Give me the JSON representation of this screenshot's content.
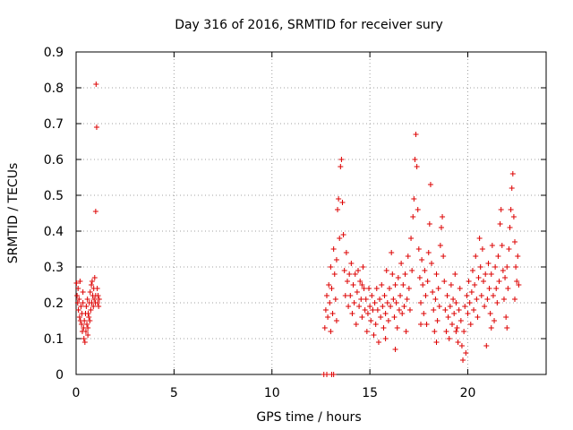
{
  "chart_data": {
    "type": "scatter",
    "title": "Day 316 of 2016, SRMTID for receiver sury",
    "xlabel": "GPS time / hours",
    "ylabel": "SRMTID / TECUs",
    "xlim": [
      0,
      24
    ],
    "ylim": [
      0,
      0.9
    ],
    "xticks": [
      0,
      5,
      10,
      15,
      20
    ],
    "xtick_labels": [
      "0",
      "5",
      "10",
      "15",
      "20"
    ],
    "yticks": [
      0,
      0.1,
      0.2,
      0.3,
      0.4,
      0.5,
      0.6,
      0.7,
      0.8,
      0.9
    ],
    "ytick_labels": [
      "0",
      "0.1",
      "0.2",
      "0.3",
      "0.4",
      "0.5",
      "0.6",
      "0.7",
      "0.8",
      "0.9"
    ],
    "grid": true,
    "marker": "plus",
    "color": "#dd0000",
    "series": [
      {
        "name": "SRMTID",
        "points": [
          [
            0.02,
            0.255
          ],
          [
            0.05,
            0.22
          ],
          [
            0.08,
            0.2
          ],
          [
            0.1,
            0.24
          ],
          [
            0.12,
            0.18
          ],
          [
            0.15,
            0.21
          ],
          [
            0.18,
            0.16
          ],
          [
            0.2,
            0.26
          ],
          [
            0.22,
            0.15
          ],
          [
            0.25,
            0.19
          ],
          [
            0.28,
            0.14
          ],
          [
            0.3,
            0.17
          ],
          [
            0.32,
            0.12
          ],
          [
            0.35,
            0.2
          ],
          [
            0.38,
            0.13
          ],
          [
            0.4,
            0.1
          ],
          [
            0.42,
            0.15
          ],
          [
            0.45,
            0.09
          ],
          [
            0.48,
            0.17
          ],
          [
            0.5,
            0.12
          ],
          [
            0.52,
            0.19
          ],
          [
            0.55,
            0.14
          ],
          [
            0.58,
            0.21
          ],
          [
            0.6,
            0.13
          ],
          [
            0.62,
            0.17
          ],
          [
            0.65,
            0.16
          ],
          [
            0.68,
            0.2
          ],
          [
            0.7,
            0.15
          ],
          [
            0.72,
            0.23
          ],
          [
            0.75,
            0.18
          ],
          [
            0.78,
            0.25
          ],
          [
            0.8,
            0.2
          ],
          [
            0.82,
            0.26
          ],
          [
            0.85,
            0.22
          ],
          [
            0.88,
            0.19
          ],
          [
            0.9,
            0.24
          ],
          [
            0.92,
            0.21
          ],
          [
            0.95,
            0.27
          ],
          [
            0.98,
            0.2
          ],
          [
            1.0,
            0.22
          ],
          [
            1.02,
            0.81
          ],
          [
            1.05,
            0.69
          ],
          [
            1.0,
            0.455
          ],
          [
            1.08,
            0.24
          ],
          [
            1.1,
            0.2
          ],
          [
            1.12,
            0.22
          ],
          [
            1.15,
            0.19
          ],
          [
            1.18,
            0.21
          ],
          [
            0.35,
            0.23
          ],
          [
            0.6,
            0.11
          ],
          [
            12.65,
            0.0
          ],
          [
            12.8,
            0.0
          ],
          [
            13.05,
            0.0
          ],
          [
            13.15,
            0.0
          ],
          [
            12.7,
            0.13
          ],
          [
            12.75,
            0.18
          ],
          [
            12.8,
            0.22
          ],
          [
            12.85,
            0.16
          ],
          [
            12.9,
            0.25
          ],
          [
            12.95,
            0.2
          ],
          [
            13.0,
            0.3
          ],
          [
            13.05,
            0.24
          ],
          [
            13.1,
            0.17
          ],
          [
            13.15,
            0.35
          ],
          [
            13.2,
            0.28
          ],
          [
            13.25,
            0.21
          ],
          [
            13.3,
            0.32
          ],
          [
            13.35,
            0.46
          ],
          [
            13.4,
            0.49
          ],
          [
            13.45,
            0.38
          ],
          [
            13.5,
            0.58
          ],
          [
            13.55,
            0.6
          ],
          [
            13.6,
            0.48
          ],
          [
            13.65,
            0.39
          ],
          [
            13.7,
            0.29
          ],
          [
            13.75,
            0.22
          ],
          [
            13.8,
            0.34
          ],
          [
            13.85,
            0.26
          ],
          [
            13.9,
            0.19
          ],
          [
            13.95,
            0.28
          ],
          [
            14.0,
            0.22
          ],
          [
            14.05,
            0.31
          ],
          [
            14.1,
            0.17
          ],
          [
            14.15,
            0.25
          ],
          [
            14.2,
            0.2
          ],
          [
            14.25,
            0.28
          ],
          [
            14.3,
            0.14
          ],
          [
            14.35,
            0.23
          ],
          [
            14.4,
            0.29
          ],
          [
            14.45,
            0.19
          ],
          [
            14.5,
            0.26
          ],
          [
            14.55,
            0.21
          ],
          [
            14.6,
            0.16
          ],
          [
            14.65,
            0.3
          ],
          [
            14.7,
            0.24
          ],
          [
            14.75,
            0.18
          ],
          [
            14.8,
            0.21
          ],
          [
            14.85,
            0.12
          ],
          [
            14.9,
            0.17
          ],
          [
            14.95,
            0.24
          ],
          [
            15.0,
            0.19
          ],
          [
            15.05,
            0.15
          ],
          [
            15.1,
            0.22
          ],
          [
            15.15,
            0.18
          ],
          [
            15.2,
            0.11
          ],
          [
            15.25,
            0.2
          ],
          [
            15.3,
            0.14
          ],
          [
            15.35,
            0.24
          ],
          [
            15.4,
            0.18
          ],
          [
            15.45,
            0.09
          ],
          [
            15.5,
            0.21
          ],
          [
            15.55,
            0.16
          ],
          [
            15.6,
            0.25
          ],
          [
            15.65,
            0.19
          ],
          [
            15.7,
            0.13
          ],
          [
            15.75,
            0.22
          ],
          [
            15.8,
            0.17
          ],
          [
            15.85,
            0.29
          ],
          [
            15.9,
            0.2
          ],
          [
            15.95,
            0.15
          ],
          [
            16.0,
            0.24
          ],
          [
            16.05,
            0.19
          ],
          [
            16.1,
            0.34
          ],
          [
            16.15,
            0.28
          ],
          [
            16.2,
            0.21
          ],
          [
            16.25,
            0.16
          ],
          [
            16.3,
            0.25
          ],
          [
            16.35,
            0.2
          ],
          [
            16.4,
            0.13
          ],
          [
            16.45,
            0.27
          ],
          [
            16.5,
            0.18
          ],
          [
            16.55,
            0.22
          ],
          [
            16.6,
            0.31
          ],
          [
            16.65,
            0.17
          ],
          [
            16.7,
            0.25
          ],
          [
            16.75,
            0.19
          ],
          [
            16.8,
            0.28
          ],
          [
            16.85,
            0.12
          ],
          [
            16.9,
            0.21
          ],
          [
            16.95,
            0.33
          ],
          [
            17.0,
            0.24
          ],
          [
            17.05,
            0.18
          ],
          [
            17.1,
            0.38
          ],
          [
            17.15,
            0.29
          ],
          [
            17.2,
            0.44
          ],
          [
            17.25,
            0.49
          ],
          [
            17.3,
            0.6
          ],
          [
            17.35,
            0.67
          ],
          [
            17.4,
            0.58
          ],
          [
            17.45,
            0.46
          ],
          [
            17.5,
            0.35
          ],
          [
            17.55,
            0.27
          ],
          [
            17.6,
            0.2
          ],
          [
            17.65,
            0.32
          ],
          [
            17.7,
            0.25
          ],
          [
            17.75,
            0.17
          ],
          [
            17.8,
            0.29
          ],
          [
            17.85,
            0.22
          ],
          [
            17.9,
            0.14
          ],
          [
            17.95,
            0.26
          ],
          [
            18.0,
            0.34
          ],
          [
            18.05,
            0.42
          ],
          [
            18.1,
            0.53
          ],
          [
            18.15,
            0.31
          ],
          [
            18.2,
            0.23
          ],
          [
            18.25,
            0.18
          ],
          [
            18.3,
            0.12
          ],
          [
            18.35,
            0.21
          ],
          [
            18.4,
            0.28
          ],
          [
            18.45,
            0.15
          ],
          [
            18.5,
            0.24
          ],
          [
            18.55,
            0.19
          ],
          [
            18.6,
            0.36
          ],
          [
            18.65,
            0.41
          ],
          [
            18.7,
            0.44
          ],
          [
            18.75,
            0.33
          ],
          [
            18.8,
            0.26
          ],
          [
            18.85,
            0.18
          ],
          [
            18.9,
            0.12
          ],
          [
            18.95,
            0.22
          ],
          [
            19.0,
            0.16
          ],
          [
            19.05,
            0.1
          ],
          [
            19.1,
            0.19
          ],
          [
            19.15,
            0.25
          ],
          [
            19.2,
            0.14
          ],
          [
            19.25,
            0.21
          ],
          [
            19.3,
            0.17
          ],
          [
            19.35,
            0.28
          ],
          [
            19.4,
            0.2
          ],
          [
            19.45,
            0.13
          ],
          [
            19.5,
            0.09
          ],
          [
            19.55,
            0.18
          ],
          [
            19.6,
            0.24
          ],
          [
            19.65,
            0.15
          ],
          [
            19.7,
            0.08
          ],
          [
            19.75,
            0.04
          ],
          [
            19.8,
            0.12
          ],
          [
            19.85,
            0.19
          ],
          [
            19.9,
            0.06
          ],
          [
            19.95,
            0.22
          ],
          [
            20.0,
            0.17
          ],
          [
            20.05,
            0.26
          ],
          [
            20.1,
            0.2
          ],
          [
            20.15,
            0.14
          ],
          [
            20.2,
            0.23
          ],
          [
            20.25,
            0.29
          ],
          [
            20.3,
            0.18
          ],
          [
            20.35,
            0.25
          ],
          [
            20.4,
            0.33
          ],
          [
            20.45,
            0.21
          ],
          [
            20.5,
            0.16
          ],
          [
            20.55,
            0.27
          ],
          [
            20.6,
            0.38
          ],
          [
            20.65,
            0.3
          ],
          [
            20.7,
            0.22
          ],
          [
            20.75,
            0.35
          ],
          [
            20.8,
            0.26
          ],
          [
            20.85,
            0.19
          ],
          [
            20.9,
            0.28
          ],
          [
            20.95,
            0.08
          ],
          [
            21.0,
            0.21
          ],
          [
            21.05,
            0.31
          ],
          [
            21.1,
            0.24
          ],
          [
            21.15,
            0.17
          ],
          [
            21.2,
            0.28
          ],
          [
            21.25,
            0.36
          ],
          [
            21.3,
            0.22
          ],
          [
            21.35,
            0.15
          ],
          [
            21.4,
            0.3
          ],
          [
            21.45,
            0.24
          ],
          [
            21.5,
            0.2
          ],
          [
            21.55,
            0.33
          ],
          [
            21.6,
            0.26
          ],
          [
            21.65,
            0.42
          ],
          [
            21.7,
            0.46
          ],
          [
            21.75,
            0.36
          ],
          [
            21.8,
            0.29
          ],
          [
            21.85,
            0.21
          ],
          [
            21.9,
            0.27
          ],
          [
            21.95,
            0.16
          ],
          [
            22.0,
            0.13
          ],
          [
            22.05,
            0.24
          ],
          [
            22.1,
            0.35
          ],
          [
            22.15,
            0.41
          ],
          [
            22.2,
            0.46
          ],
          [
            22.25,
            0.52
          ],
          [
            22.3,
            0.56
          ],
          [
            22.35,
            0.44
          ],
          [
            22.4,
            0.37
          ],
          [
            22.45,
            0.3
          ],
          [
            22.5,
            0.26
          ],
          [
            22.55,
            0.33
          ],
          [
            22.6,
            0.25
          ],
          [
            22.4,
            0.21
          ],
          [
            13.0,
            0.12
          ],
          [
            13.3,
            0.15
          ],
          [
            14.6,
            0.25
          ],
          [
            15.8,
            0.1
          ],
          [
            16.3,
            0.07
          ],
          [
            17.6,
            0.14
          ],
          [
            18.4,
            0.09
          ],
          [
            19.4,
            0.12
          ],
          [
            21.2,
            0.13
          ],
          [
            22.0,
            0.3
          ]
        ]
      }
    ]
  }
}
